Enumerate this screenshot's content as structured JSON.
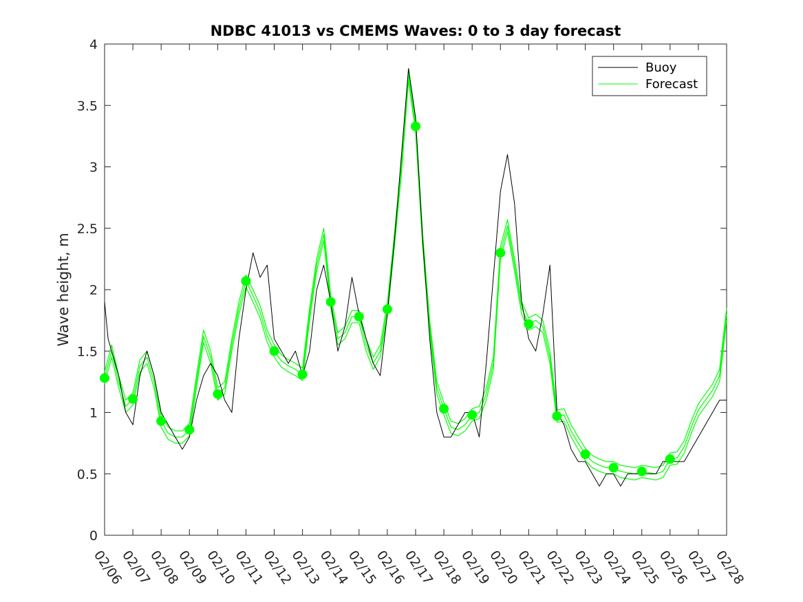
{
  "chart_data": {
    "type": "line",
    "title": "NDBC 41013 vs CMEMS Waves: 0 to 3 day forecast",
    "xlabel": "",
    "ylabel": "Wave height, m",
    "xlim": [
      "02/06",
      "02/28"
    ],
    "ylim": [
      0,
      4
    ],
    "x_ticks": [
      "02/06",
      "02/07",
      "02/08",
      "02/09",
      "02/10",
      "02/11",
      "02/12",
      "02/13",
      "02/14",
      "02/15",
      "02/16",
      "02/17",
      "02/18",
      "02/19",
      "02/20",
      "02/21",
      "02/22",
      "02/23",
      "02/24",
      "02/25",
      "02/26",
      "02/27",
      "02/28"
    ],
    "y_ticks": [
      "0",
      "0.5",
      "1",
      "1.5",
      "2",
      "2.5",
      "3",
      "3.5",
      "4"
    ],
    "grid": false,
    "legend_position": "top-right",
    "colors": {
      "buoy": "#000000",
      "forecast": "#00ff00"
    },
    "series": [
      {
        "name": "Buoy",
        "x": [
          "02/06 00:00",
          "02/06 03:00",
          "02/06 06:00",
          "02/06 09:00",
          "02/06 12:00",
          "02/06 18:00",
          "02/07 00:00",
          "02/07 06:00",
          "02/07 12:00",
          "02/07 18:00",
          "02/08 00:00",
          "02/08 06:00",
          "02/08 12:00",
          "02/08 18:00",
          "02/09 00:00",
          "02/09 06:00",
          "02/09 12:00",
          "02/09 18:00",
          "02/10 00:00",
          "02/10 06:00",
          "02/10 12:00",
          "02/10 18:00",
          "02/11 00:00",
          "02/11 06:00",
          "02/11 12:00",
          "02/11 18:00",
          "02/12 00:00",
          "02/12 06:00",
          "02/12 12:00",
          "02/12 18:00",
          "02/13 00:00",
          "02/13 06:00",
          "02/13 12:00",
          "02/13 18:00",
          "02/14 00:00",
          "02/14 06:00",
          "02/14 12:00",
          "02/14 18:00",
          "02/15 00:00",
          "02/15 06:00",
          "02/15 12:00",
          "02/15 18:00",
          "02/16 00:00",
          "02/16 06:00",
          "02/16 12:00",
          "02/16 18:00",
          "02/17 00:00",
          "02/17 06:00",
          "02/17 12:00",
          "02/17 18:00",
          "02/18 00:00",
          "02/18 06:00",
          "02/18 12:00",
          "02/18 18:00",
          "02/19 00:00",
          "02/19 06:00",
          "02/19 12:00",
          "02/19 18:00",
          "02/20 00:00",
          "02/20 06:00",
          "02/20 12:00",
          "02/20 18:00",
          "02/21 00:00",
          "02/21 06:00",
          "02/21 12:00",
          "02/21 18:00",
          "02/22 00:00",
          "02/22 06:00",
          "02/22 12:00",
          "02/22 18:00",
          "02/23 00:00",
          "02/23 06:00",
          "02/23 12:00",
          "02/23 18:00",
          "02/24 00:00",
          "02/24 06:00",
          "02/24 12:00",
          "02/24 18:00",
          "02/25 00:00",
          "02/25 06:00",
          "02/25 12:00",
          "02/25 18:00",
          "02/26 00:00",
          "02/26 06:00",
          "02/26 12:00",
          "02/26 18:00",
          "02/27 00:00",
          "02/27 06:00",
          "02/27 12:00",
          "02/27 18:00",
          "02/28 00:00"
        ],
        "values": [
          1.9,
          1.6,
          1.5,
          1.4,
          1.3,
          1.0,
          0.9,
          1.3,
          1.5,
          1.3,
          1.0,
          0.9,
          0.8,
          0.7,
          0.8,
          1.1,
          1.3,
          1.4,
          1.3,
          1.1,
          1.0,
          1.6,
          2.0,
          2.3,
          2.1,
          2.2,
          1.6,
          1.5,
          1.4,
          1.5,
          1.3,
          1.5,
          2.0,
          2.2,
          1.9,
          1.5,
          1.7,
          2.1,
          1.8,
          1.6,
          1.4,
          1.3,
          1.8,
          2.4,
          3.1,
          3.8,
          3.4,
          2.4,
          1.6,
          1.0,
          0.8,
          0.8,
          0.9,
          1.0,
          1.0,
          0.8,
          1.4,
          2.1,
          2.8,
          3.1,
          2.7,
          1.9,
          1.6,
          1.5,
          1.8,
          2.2,
          1.0,
          0.9,
          0.7,
          0.6,
          0.6,
          0.5,
          0.4,
          0.5,
          0.5,
          0.4,
          0.5,
          0.5,
          0.5,
          0.5,
          0.5,
          0.6,
          0.6,
          0.6,
          0.6,
          0.7,
          0.8,
          0.9,
          1.0,
          1.1,
          1.1
        ]
      },
      {
        "name": "Forecast",
        "x": [
          "02/06 00:00",
          "02/06 06:00",
          "02/06 12:00",
          "02/06 18:00",
          "02/07 00:00",
          "02/07 06:00",
          "02/07 12:00",
          "02/07 18:00",
          "02/08 00:00",
          "02/08 06:00",
          "02/08 12:00",
          "02/08 18:00",
          "02/09 00:00",
          "02/09 06:00",
          "02/09 12:00",
          "02/09 18:00",
          "02/10 00:00",
          "02/10 06:00",
          "02/10 12:00",
          "02/10 18:00",
          "02/11 00:00",
          "02/11 06:00",
          "02/11 12:00",
          "02/11 18:00",
          "02/12 00:00",
          "02/12 06:00",
          "02/12 12:00",
          "02/12 18:00",
          "02/13 00:00",
          "02/13 06:00",
          "02/13 12:00",
          "02/13 18:00",
          "02/14 00:00",
          "02/14 06:00",
          "02/14 12:00",
          "02/14 18:00",
          "02/15 00:00",
          "02/15 06:00",
          "02/15 12:00",
          "02/15 18:00",
          "02/16 00:00",
          "02/16 06:00",
          "02/16 12:00",
          "02/16 18:00",
          "02/17 00:00",
          "02/17 06:00",
          "02/17 12:00",
          "02/17 18:00",
          "02/18 00:00",
          "02/18 06:00",
          "02/18 12:00",
          "02/18 18:00",
          "02/19 00:00",
          "02/19 06:00",
          "02/19 12:00",
          "02/19 18:00",
          "02/20 00:00",
          "02/20 06:00",
          "02/20 12:00",
          "02/20 18:00",
          "02/21 00:00",
          "02/21 06:00",
          "02/21 12:00",
          "02/21 18:00",
          "02/22 00:00",
          "02/22 06:00",
          "02/22 12:00",
          "02/22 18:00",
          "02/23 00:00",
          "02/23 06:00",
          "02/23 12:00",
          "02/23 18:00",
          "02/24 00:00",
          "02/24 06:00",
          "02/24 12:00",
          "02/24 18:00",
          "02/25 00:00",
          "02/25 06:00",
          "02/25 12:00",
          "02/25 18:00",
          "02/26 00:00",
          "02/26 06:00",
          "02/26 12:00",
          "02/26 18:00",
          "02/27 00:00",
          "02/27 06:00",
          "02/27 12:00",
          "02/27 18:00",
          "02/28 00:00"
        ],
        "values": [
          1.28,
          1.5,
          1.25,
          1.05,
          1.11,
          1.38,
          1.45,
          1.25,
          0.93,
          0.83,
          0.8,
          0.8,
          0.86,
          1.25,
          1.62,
          1.45,
          1.15,
          1.2,
          1.55,
          1.85,
          2.07,
          1.95,
          1.82,
          1.62,
          1.5,
          1.42,
          1.38,
          1.35,
          1.31,
          1.8,
          2.2,
          2.45,
          1.9,
          1.6,
          1.65,
          1.78,
          1.78,
          1.55,
          1.4,
          1.5,
          1.84,
          2.4,
          3.0,
          3.75,
          3.33,
          2.4,
          1.7,
          1.2,
          1.03,
          0.88,
          0.86,
          0.9,
          0.98,
          1.0,
          1.15,
          1.4,
          2.3,
          2.52,
          2.2,
          1.85,
          1.72,
          1.75,
          1.7,
          1.45,
          0.97,
          0.98,
          0.85,
          0.75,
          0.66,
          0.6,
          0.57,
          0.55,
          0.55,
          0.52,
          0.51,
          0.5,
          0.52,
          0.51,
          0.5,
          0.52,
          0.62,
          0.63,
          0.72,
          0.88,
          1.02,
          1.1,
          1.18,
          1.3,
          1.8
        ]
      }
    ],
    "forecast_markers": {
      "x": [
        "02/06",
        "02/07",
        "02/08",
        "02/09",
        "02/10",
        "02/11",
        "02/12",
        "02/13",
        "02/14",
        "02/15",
        "02/16",
        "02/17",
        "02/18",
        "02/19",
        "02/20",
        "02/21",
        "02/22",
        "02/23",
        "02/24",
        "02/25",
        "02/26"
      ],
      "values": [
        1.28,
        1.11,
        0.93,
        0.86,
        1.15,
        2.07,
        1.5,
        1.31,
        1.9,
        1.78,
        1.84,
        3.33,
        1.03,
        0.98,
        2.3,
        1.72,
        0.97,
        0.66,
        0.55,
        0.52,
        0.62
      ]
    }
  }
}
